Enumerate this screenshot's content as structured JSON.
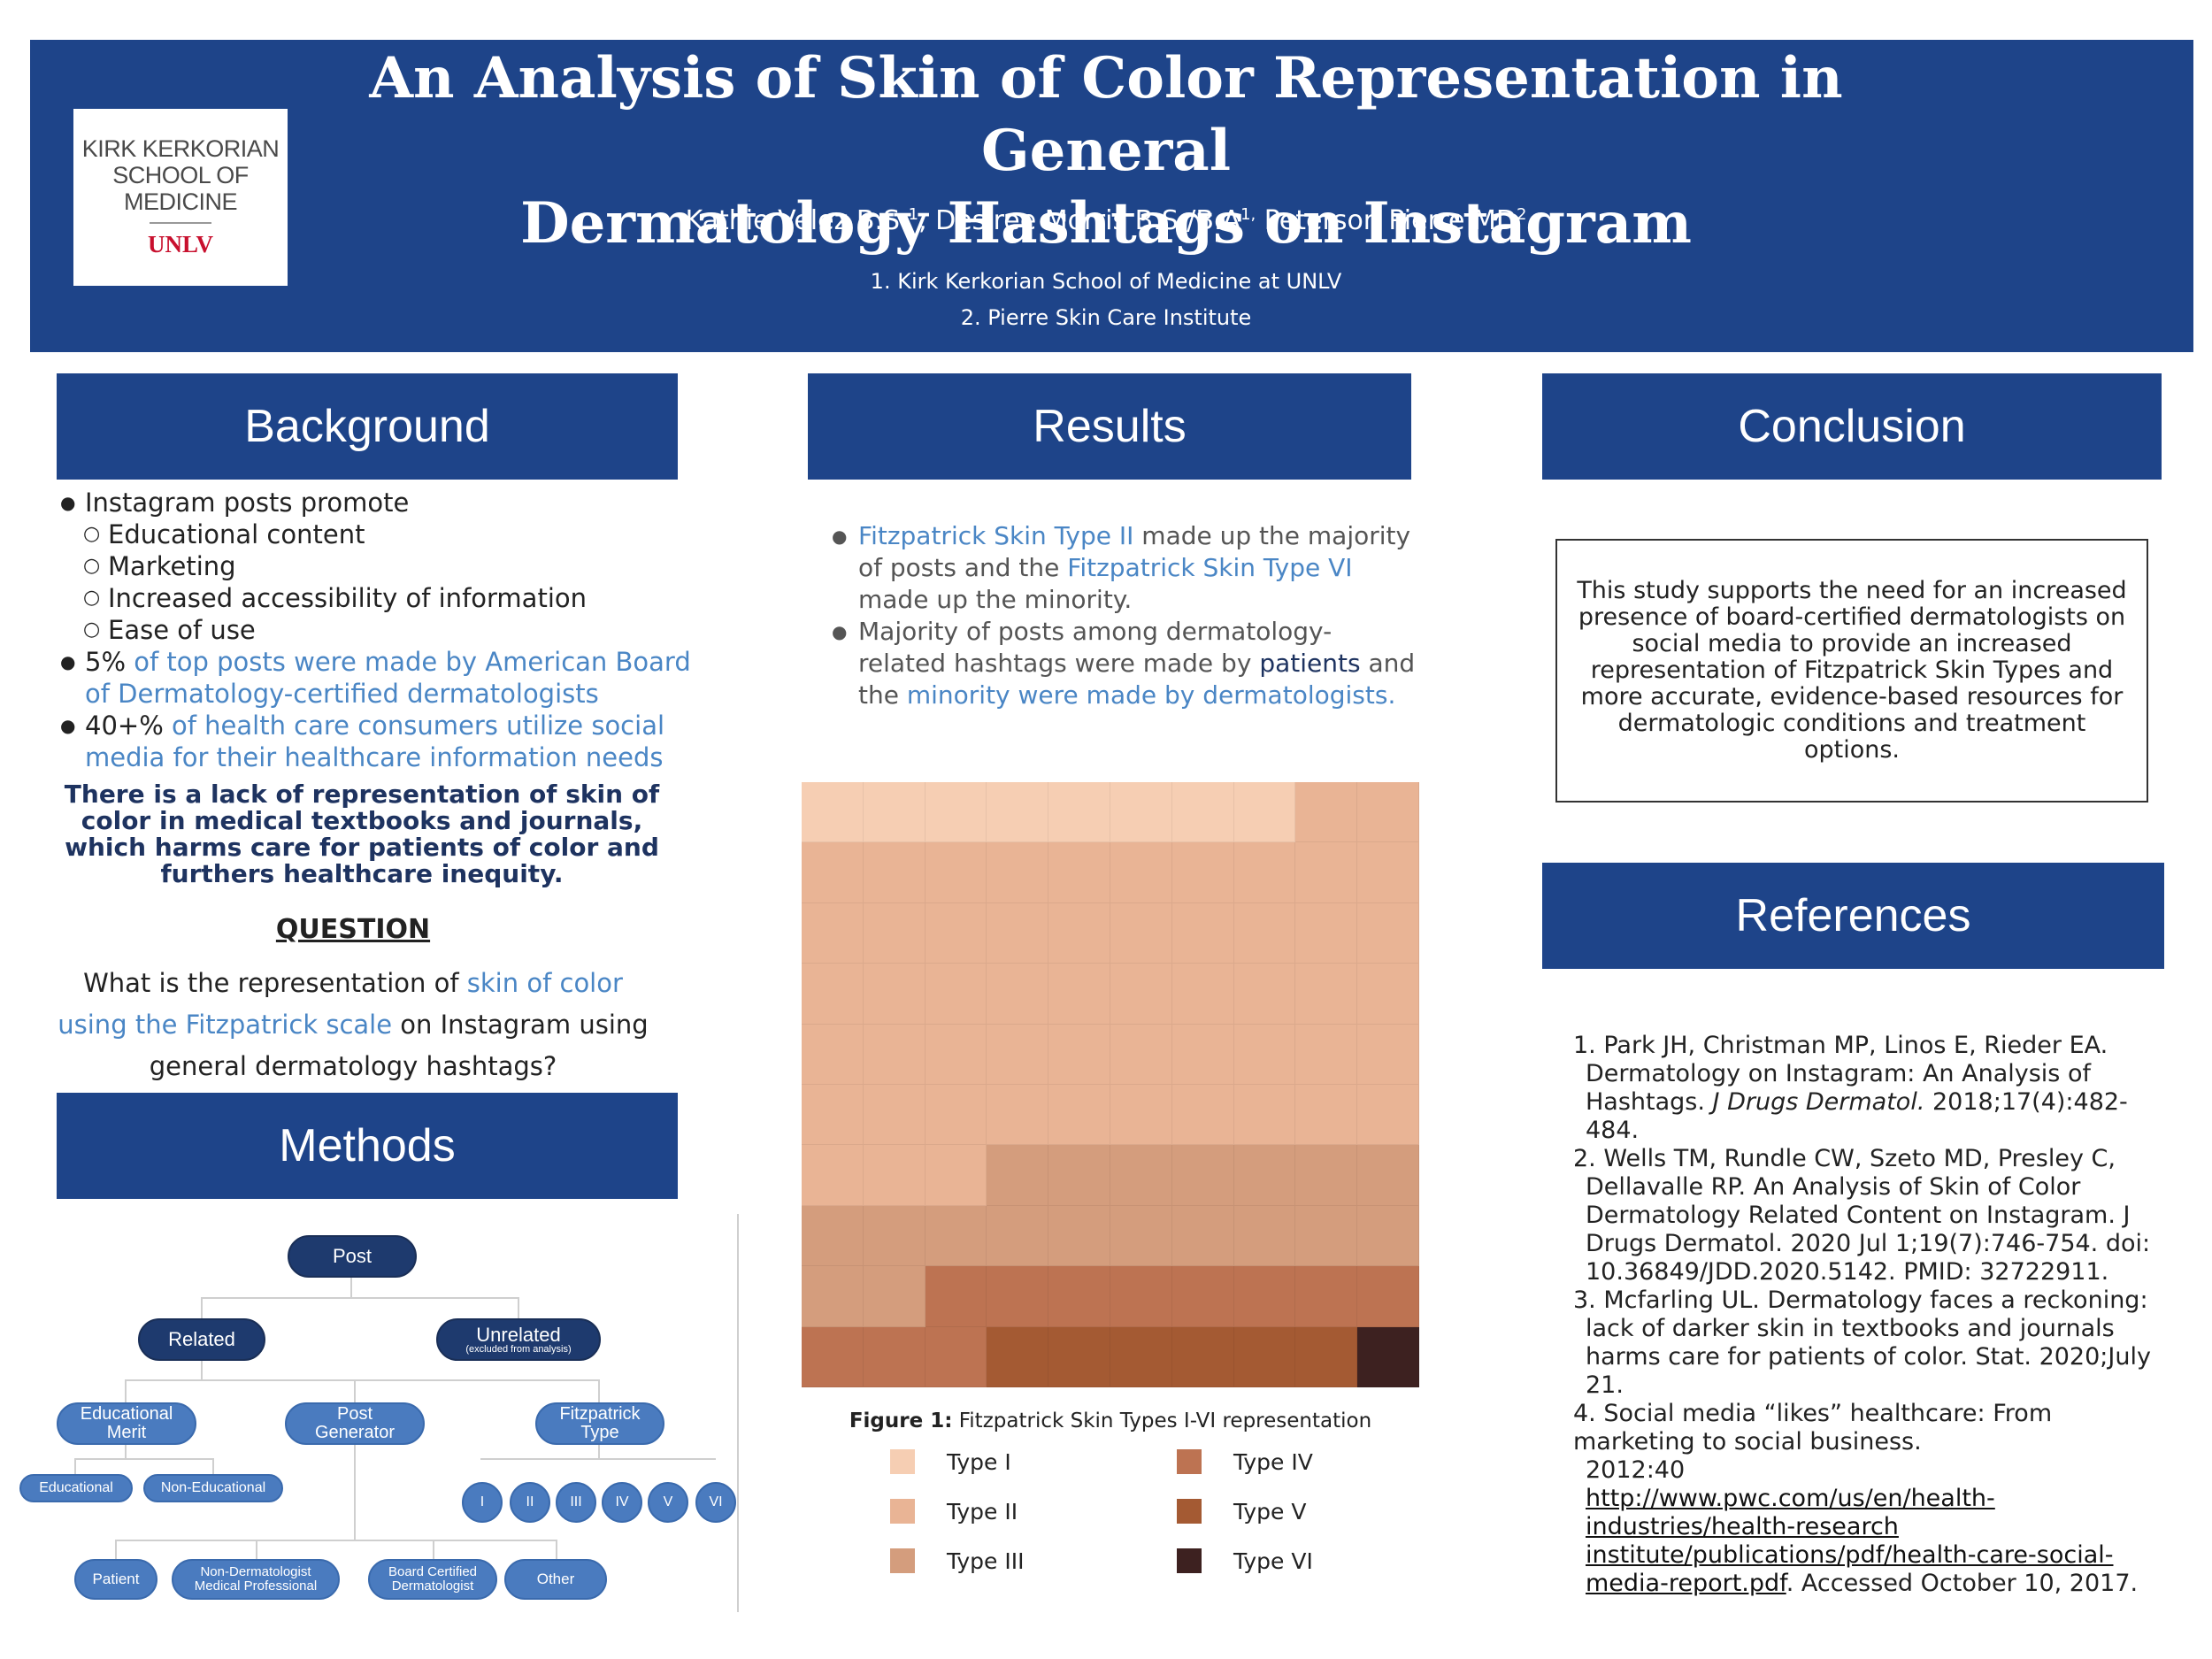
{
  "header": {
    "title_line1": "An Analysis of Skin of Color Representation in General",
    "title_line2": "Dermatology Hashtags on Instagram",
    "authors": {
      "a1": "Kathie Velez B.S.",
      "a1_sup": "1",
      "a2": ", Desiree Morris B.S./B.A",
      "a2_sup": "1,",
      "a3": " Peterson Pierre MD",
      "a3_sup": "2"
    },
    "affiliation1": "1.  Kirk Kerkorian School of Medicine at UNLV",
    "affiliation2": "2.  Pierre Skin Care Institute"
  },
  "logo": {
    "line1": "KIRK KERKORIAN",
    "line2": "SCHOOL OF",
    "line3": "MEDICINE",
    "mark": "UNLV"
  },
  "sections": {
    "background": "Background",
    "methods": "Methods",
    "results": "Results",
    "conclusion": "Conclusion",
    "references": "References"
  },
  "background": {
    "b1": "Instagram posts promote",
    "sub1": "Educational content",
    "sub2": "Marketing",
    "sub3": "Increased accessibility of information",
    "sub4": "Ease of use",
    "b2_pct": "5%",
    "b2_text": " of top posts were made by American Board of Dermatology-certified dermatologists",
    "b3_pct": "40+%",
    "b3_text": " of health care consumers utilize social media for their healthcare information needs",
    "statement": "There is a lack of representation of skin of color in medical textbooks and journals, which harms care for patients of color and furthers healthcare inequity.",
    "question_label": "QUESTION",
    "q_part1": "What is the representation of ",
    "q_part2": "skin of color using the Fitzpatrick scale",
    "q_part3": " on Instagram using general dermatology hashtags?"
  },
  "methods": {
    "root": "Post",
    "related": "Related",
    "unrelated": "Unrelated",
    "unrelated_note": "(excluded from analysis)",
    "edu_merit_1": "Educational",
    "edu_merit_2": "Merit",
    "post_gen_1": "Post",
    "post_gen_2": "Generator",
    "fitz_1": "Fitzpatrick",
    "fitz_2": "Type",
    "educational": "Educational",
    "non_educational": "Non-Educational",
    "types": [
      "I",
      "II",
      "III",
      "IV",
      "V",
      "VI"
    ],
    "patient": "Patient",
    "non_derm_1": "Non-Dermatologist",
    "non_derm_2": "Medical Professional",
    "board_1": "Board Certified",
    "board_2": "Dermatologist",
    "other": "Other"
  },
  "results": {
    "r1_a": "Fitzpatrick Skin Type II",
    "r1_b": " made up the majority of posts and the ",
    "r1_c": "Fitzpatrick Skin Type VI",
    "r1_d": " made up the minority.",
    "r2_a": "Majority of posts among dermatology-related hashtags were made by ",
    "r2_b": "patients",
    "r2_c": " and the ",
    "r2_d": "minority were made by dermatologists",
    "r2_e": ".",
    "figure_label": "Figure 1:",
    "figure_caption": " Fitzpatrick Skin Types I-VI representation"
  },
  "chart_data": {
    "type": "heatmap",
    "title": "Figure 1: Fitzpatrick Skin Types I-VI representation",
    "categories": [
      "Type I",
      "Type II",
      "Type III",
      "Type IV",
      "Type V",
      "Type VI"
    ],
    "values": [
      8,
      55,
      19,
      11,
      6,
      1
    ],
    "colors": [
      "#f6ceb3",
      "#e9b495",
      "#d49d7d",
      "#bd7352",
      "#a45a33",
      "#3d2120"
    ],
    "rows": 10,
    "cols": 10
  },
  "conclusion": {
    "text": "This study supports the need for an increased presence of board-certified dermatologists on social media to provide an increased representation of Fitzpatrick Skin Types and more accurate, evidence-based resources for dermatologic conditions and treatment options."
  },
  "references": {
    "r1_a": "1. Park JH, Christman MP, Linos E, Rieder EA. Dermatology on Instagram: An Analysis of Hashtags. ",
    "r1_journal": "J Drugs Dermatol.",
    "r1_b": " 2018;17(4):482-484.",
    "r2": "2. Wells TM, Rundle CW, Szeto MD, Presley C, Dellavalle RP. An Analysis of Skin of Color Dermatology Related Content on Instagram. J Drugs Dermatol. 2020 Jul 1;19(7):746-754.  doi: 10.36849/JDD.2020.5142. PMID: 32722911.",
    "r3": "3. Mcfarling UL. Dermatology faces a reckoning: lack of darker skin in textbooks and  journals harms care for patients of color. Stat. 2020;July 21.",
    "r4_a": "4. Social media “likes” healthcare: From marketing to social business.",
    "r4_b": "2012:40",
    "r4_link": "http://www.pwc.com/us/en/health-industries/health-research institute/publications/pdf/health-care-social-media-report.pdf",
    "r4_c": ". Accessed October 10,  2017."
  }
}
